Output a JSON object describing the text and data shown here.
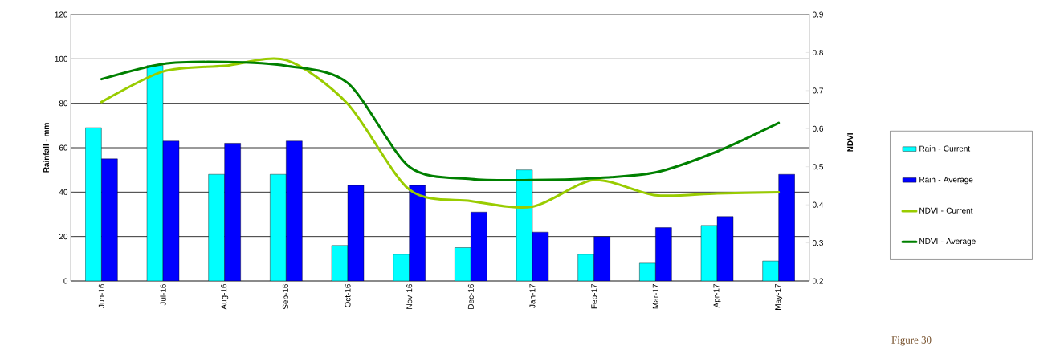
{
  "chart_data": {
    "type": "bar",
    "categories": [
      "Jun-16",
      "Jul-16",
      "Aug-16",
      "Sep-16",
      "Oct-16",
      "Nov-16",
      "Dec-16",
      "Jan-17",
      "Feb-17",
      "Mar-17",
      "Apr-17",
      "May-17"
    ],
    "series": [
      {
        "name": "Rain - Current",
        "color": "#00ffff",
        "values": [
          69,
          97,
          48,
          48,
          16,
          12,
          15,
          50,
          12,
          8,
          25,
          9
        ]
      },
      {
        "name": "Rain - Average",
        "color": "#0000ff",
        "values": [
          55,
          63,
          62,
          63,
          43,
          43,
          31,
          22,
          20,
          24,
          29,
          48
        ]
      },
      {
        "name": "NDVI - Current",
        "type": "line",
        "axis": "y2",
        "color": "#99cc00",
        "values": [
          0.67,
          0.75,
          0.765,
          0.78,
          0.665,
          0.44,
          0.41,
          0.395,
          0.465,
          0.425,
          0.43,
          0.433
        ]
      },
      {
        "name": "NDVI - Average",
        "type": "line",
        "axis": "y2",
        "color": "#008000",
        "values": [
          0.73,
          0.77,
          0.775,
          0.765,
          0.72,
          0.5,
          0.468,
          0.465,
          0.47,
          0.485,
          0.54,
          0.615
        ]
      }
    ],
    "ylabel": "Rainfall - mm",
    "y2label": "NDVI",
    "ylim": [
      0,
      120
    ],
    "yticks": [
      0,
      20,
      40,
      60,
      80,
      100,
      120
    ],
    "y2lim": [
      0.2,
      0.9
    ],
    "y2ticks": [
      0.2,
      0.3,
      0.4,
      0.5,
      0.6,
      0.7,
      0.8,
      0.9
    ],
    "grid": "y",
    "legend": "right",
    "annotations": [
      "Figure 30"
    ]
  }
}
